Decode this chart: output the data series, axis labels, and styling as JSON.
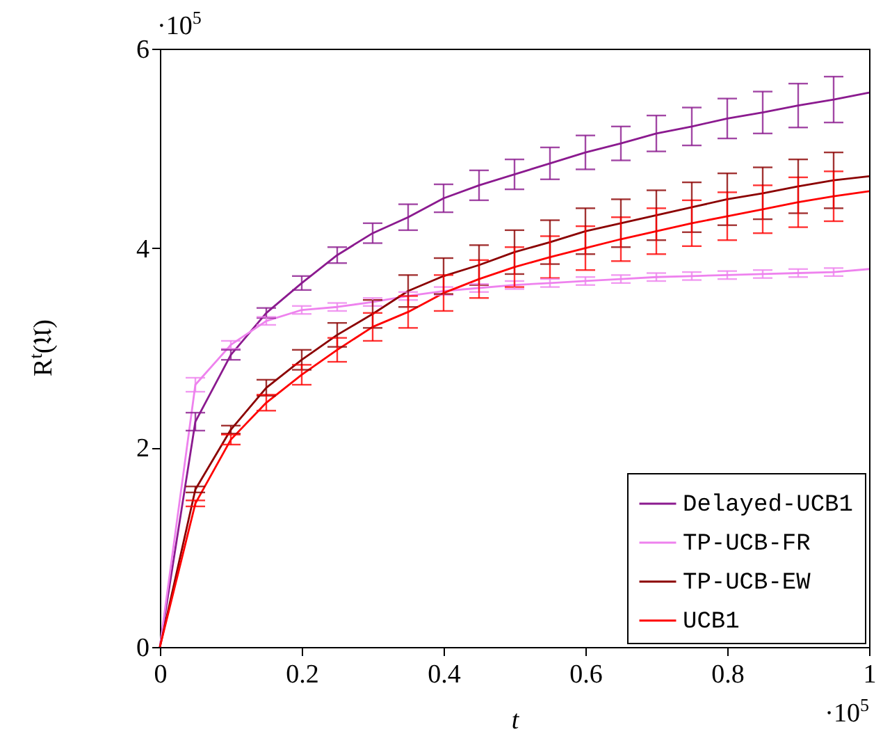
{
  "chart_data": {
    "type": "line",
    "xlabel": "t",
    "ylabel": "R$^{t}$(𝔘)",
    "annotations": [
      "·10$^{5}$",
      "·10$^{5}$"
    ],
    "x": [
      0,
      0.05,
      0.1,
      0.15,
      0.2,
      0.25,
      0.3,
      0.35,
      0.4,
      0.45,
      0.5,
      0.55,
      0.6,
      0.65,
      0.7,
      0.75,
      0.8,
      0.85,
      0.9,
      0.95,
      1
    ],
    "xlim": [
      0,
      1
    ],
    "xticks": [
      0,
      0.2,
      0.4,
      0.6,
      0.8,
      1
    ],
    "ylim": [
      0,
      6
    ],
    "yticks": [
      0,
      2,
      4,
      6
    ],
    "grid": false,
    "legend": "bottom right",
    "marker": "none",
    "line_style": "solid",
    "series": [
      {
        "name": "Delayed-UCB1",
        "color": "#8b1a8f",
        "values": [
          0,
          2.26,
          2.93,
          3.35,
          3.65,
          3.93,
          4.15,
          4.31,
          4.5,
          4.63,
          4.74,
          4.85,
          4.96,
          5.05,
          5.15,
          5.22,
          5.3,
          5.36,
          5.43,
          5.49,
          5.56
        ],
        "errors": [
          null,
          0.09,
          0.05,
          0.05,
          0.07,
          0.08,
          0.1,
          0.13,
          0.14,
          0.15,
          0.15,
          0.16,
          0.17,
          0.17,
          0.18,
          0.19,
          0.2,
          0.21,
          0.22,
          0.23,
          null
        ]
      },
      {
        "name": "TP-UCB-FR",
        "color": "#ee82ee",
        "values": [
          0,
          2.63,
          3.03,
          3.27,
          3.38,
          3.41,
          3.46,
          3.52,
          3.57,
          3.6,
          3.63,
          3.65,
          3.67,
          3.69,
          3.71,
          3.72,
          3.73,
          3.74,
          3.75,
          3.76,
          3.79
        ],
        "errors": [
          null,
          0.07,
          0.04,
          0.04,
          0.04,
          0.04,
          0.04,
          0.04,
          0.04,
          0.04,
          0.04,
          0.04,
          0.04,
          0.04,
          0.04,
          0.04,
          0.04,
          0.04,
          0.04,
          0.04,
          null
        ]
      },
      {
        "name": "TP-UCB-EW",
        "color": "#8b0000",
        "values": [
          0,
          1.58,
          2.18,
          2.6,
          2.88,
          3.13,
          3.34,
          3.57,
          3.72,
          3.83,
          3.96,
          4.06,
          4.17,
          4.25,
          4.33,
          4.41,
          4.49,
          4.55,
          4.62,
          4.68,
          4.72
        ],
        "errors": [
          null,
          0.03,
          0.04,
          0.08,
          0.1,
          0.12,
          0.14,
          0.16,
          0.18,
          0.2,
          0.22,
          0.22,
          0.23,
          0.24,
          0.25,
          0.25,
          0.26,
          0.26,
          0.27,
          0.28,
          null
        ]
      },
      {
        "name": "UCB1",
        "color": "#ff0000",
        "values": [
          0,
          1.44,
          2.08,
          2.45,
          2.73,
          2.98,
          3.21,
          3.36,
          3.55,
          3.69,
          3.81,
          3.91,
          4.0,
          4.09,
          4.17,
          4.25,
          4.32,
          4.39,
          4.46,
          4.52,
          4.57
        ],
        "errors": [
          null,
          0.03,
          0.05,
          0.08,
          0.1,
          0.12,
          0.14,
          0.16,
          0.18,
          0.19,
          0.2,
          0.21,
          0.22,
          0.22,
          0.23,
          0.23,
          0.24,
          0.24,
          0.25,
          0.25,
          null
        ]
      }
    ]
  }
}
